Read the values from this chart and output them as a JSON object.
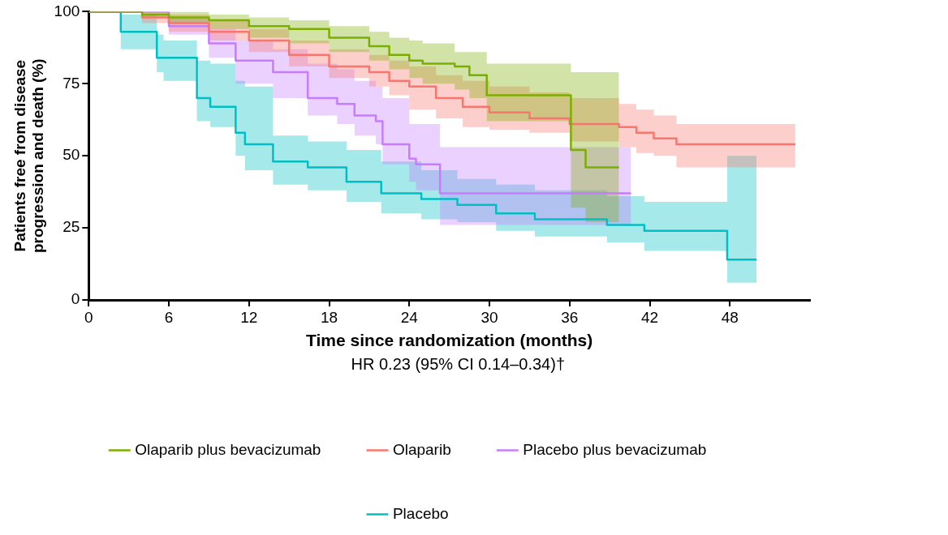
{
  "chart_data": {
    "type": "step",
    "xlabel": "Time since randomization (months)",
    "ylabel": "Patients free from disease progression and death (%)",
    "annotations": [
      "HR 0.23 (95% CI 0.14–0.34)†"
    ],
    "xlim": [
      0,
      54
    ],
    "xticks": [
      0,
      6,
      12,
      18,
      24,
      30,
      36,
      42,
      48
    ],
    "ylim": [
      0,
      100
    ],
    "yticks": [
      0,
      25,
      50,
      75,
      100
    ],
    "grid": false,
    "legend": "bottom",
    "series": [
      {
        "name": "Olaparib plus bevacizumab",
        "color": "#7cae00",
        "x": [
          0,
          3,
          4,
          6,
          9,
          12,
          15,
          18,
          21,
          22.5,
          24,
          25,
          27.4,
          28.5,
          29.8,
          33,
          36.1,
          37.2,
          39.7
        ],
        "values": [
          100,
          100,
          99,
          98,
          97,
          95,
          94,
          91,
          88,
          85,
          83,
          82,
          81,
          78,
          71,
          71,
          52,
          46,
          46
        ],
        "upper": [
          100,
          100,
          100,
          100,
          99,
          98,
          97,
          95,
          93,
          91,
          90,
          89,
          86,
          86,
          82,
          82,
          79,
          79,
          79
        ],
        "lower": [
          100,
          100,
          98,
          96,
          94,
          91,
          89,
          86,
          83,
          80,
          77,
          75,
          73,
          70,
          62,
          62,
          32,
          27,
          27
        ]
      },
      {
        "name": "Olaparib",
        "color": "#f8766d",
        "x": [
          0,
          3,
          4,
          6,
          9,
          12,
          15,
          18,
          21,
          22.5,
          24,
          26,
          28,
          30,
          33,
          36,
          39.7,
          41,
          42.3,
          44,
          48,
          52.9
        ],
        "values": [
          100,
          100,
          98,
          96,
          93,
          90,
          85,
          81,
          79,
          76,
          74,
          70,
          67,
          65,
          63,
          61,
          60,
          58,
          56,
          54,
          54,
          54
        ],
        "upper": [
          100,
          100,
          100,
          99,
          97,
          94,
          90,
          87,
          85,
          83,
          81,
          78,
          76,
          74,
          72,
          70,
          68,
          66,
          64,
          61,
          61,
          61
        ],
        "lower": [
          100,
          100,
          96,
          93,
          90,
          86,
          81,
          77,
          74,
          71,
          66,
          63,
          60,
          59,
          58,
          55,
          53,
          51,
          50,
          46,
          46,
          46
        ]
      },
      {
        "name": "Placebo plus bevacizumab",
        "color": "#c77cff",
        "x": [
          0,
          6,
          9,
          11,
          13.8,
          16.4,
          18.6,
          19.9,
          21.5,
          22,
          24,
          24.5,
          26.3,
          40.6
        ],
        "values": [
          100,
          95,
          89,
          83,
          79,
          70,
          68,
          64,
          62,
          54,
          49,
          47,
          37,
          37
        ],
        "upper": [
          100,
          98,
          94,
          90,
          87,
          82,
          80,
          76,
          74,
          70,
          61,
          61,
          53,
          53
        ],
        "lower": [
          100,
          92,
          84,
          75,
          70,
          64,
          61,
          57,
          54,
          47,
          41,
          38,
          26,
          26
        ]
      },
      {
        "name": "Placebo",
        "color": "#00bfc4",
        "x": [
          0,
          2.4,
          5.1,
          5.6,
          8.1,
          9.1,
          11,
          11.7,
          13.8,
          16.4,
          19.3,
          21.9,
          24.9,
          27.6,
          30.5,
          33.4,
          38.8,
          41.6,
          47.8,
          50
        ],
        "values": [
          100,
          93,
          84,
          84,
          70,
          67,
          58,
          54,
          48,
          46,
          41,
          37,
          35,
          33,
          30,
          28,
          26,
          24,
          14,
          14
        ],
        "upper": [
          100,
          99,
          92,
          90,
          83,
          82,
          76,
          74,
          57,
          55,
          52,
          48,
          45,
          42,
          40,
          38,
          36,
          34,
          50,
          50
        ],
        "lower": [
          100,
          87,
          79,
          76,
          62,
          60,
          50,
          45,
          40,
          38,
          34,
          30,
          28,
          27,
          24,
          22,
          20,
          17,
          6,
          6
        ]
      }
    ]
  }
}
